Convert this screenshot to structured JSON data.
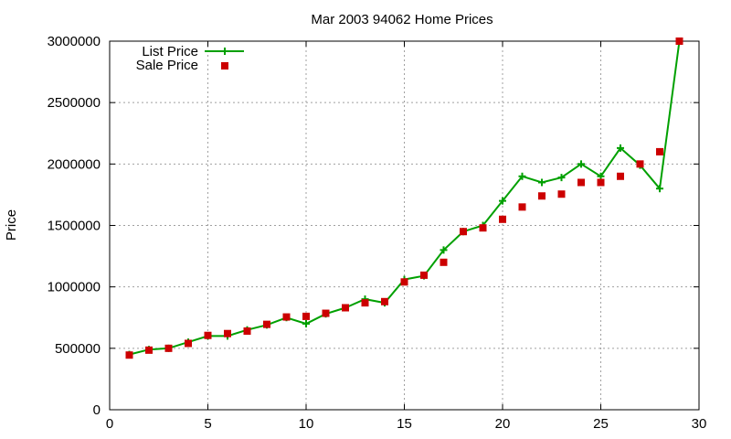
{
  "chart_data": {
    "type": "line",
    "title": "Mar 2003 94062 Home Prices",
    "xlabel": "",
    "ylabel": "Price",
    "xlim": [
      0,
      30
    ],
    "ylim": [
      0,
      3000000
    ],
    "x_ticks": [
      "0",
      "5",
      "10",
      "15",
      "20",
      "25",
      "30"
    ],
    "y_ticks": [
      "0",
      "500000",
      "1000000",
      "1500000",
      "2000000",
      "2500000",
      "3000000"
    ],
    "grid": true,
    "legend_position": "top-left",
    "series": [
      {
        "name": "List Price",
        "style": "line-with-plus-markers",
        "color": "#00a000",
        "x": [
          1,
          2,
          3,
          4,
          5,
          6,
          7,
          8,
          9,
          10,
          11,
          12,
          13,
          14,
          15,
          16,
          17,
          18,
          19,
          20,
          21,
          22,
          23,
          24,
          25,
          26,
          27,
          28,
          29
        ],
        "values": [
          450000,
          490000,
          500000,
          550000,
          600000,
          600000,
          650000,
          690000,
          750000,
          700000,
          780000,
          830000,
          900000,
          870000,
          1060000,
          1090000,
          1300000,
          1450000,
          1500000,
          1700000,
          1900000,
          1850000,
          1890000,
          2000000,
          1900000,
          2130000,
          1990000,
          1800000,
          3000000
        ]
      },
      {
        "name": "Sale Price",
        "style": "square-markers",
        "color": "#cc0000",
        "x": [
          1,
          2,
          3,
          4,
          5,
          6,
          7,
          8,
          9,
          10,
          11,
          12,
          13,
          14,
          15,
          16,
          17,
          18,
          19,
          20,
          21,
          22,
          23,
          24,
          25,
          26,
          27,
          28,
          29
        ],
        "values": [
          445000,
          485000,
          500000,
          540000,
          605000,
          620000,
          640000,
          695000,
          755000,
          760000,
          785000,
          830000,
          870000,
          880000,
          1040000,
          1095000,
          1200000,
          1450000,
          1480000,
          1550000,
          1650000,
          1740000,
          1755000,
          1850000,
          1850000,
          1900000,
          2000000,
          2100000,
          3000000
        ]
      }
    ]
  }
}
